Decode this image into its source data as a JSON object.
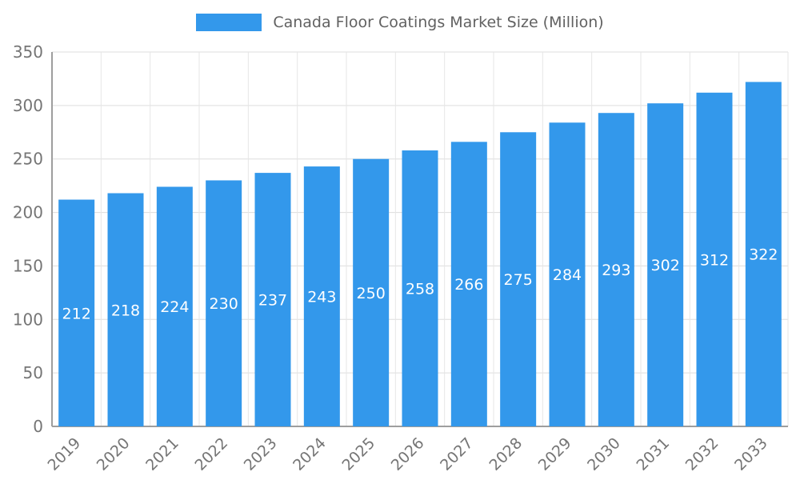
{
  "chart_data": {
    "type": "bar",
    "title": "Canada Floor Coatings Market Size (Million)",
    "categories": [
      "2019",
      "2020",
      "2021",
      "2022",
      "2023",
      "2024",
      "2025",
      "2026",
      "2027",
      "2028",
      "2029",
      "2030",
      "2031",
      "2032",
      "2033"
    ],
    "values": [
      212,
      218,
      224,
      230,
      237,
      243,
      250,
      258,
      266,
      275,
      284,
      293,
      302,
      312,
      322
    ],
    "xlabel": "",
    "ylabel": "",
    "ylim": [
      0,
      350
    ],
    "ytick_step": 50,
    "yticks": [
      0,
      50,
      100,
      150,
      200,
      250,
      300,
      350
    ],
    "grid": true,
    "legend_position": "top",
    "bar_labels_inside": true,
    "colors": {
      "bar": "#3398EB",
      "bar_label": "#FFFFFF",
      "axis_text": "#757575",
      "legend_text": "#616161",
      "gridline_h": "#DDDDDD",
      "gridline_v": "#E6E6E6",
      "axis_line": "#9E9E9E",
      "background": "#FFFFFF"
    }
  }
}
